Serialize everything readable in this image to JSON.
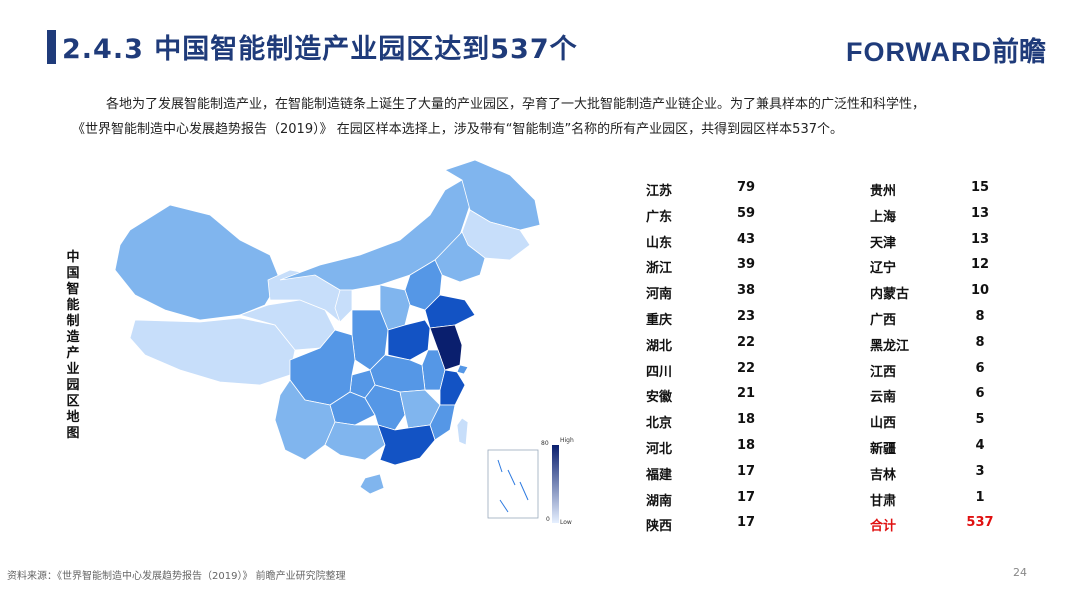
{
  "header": {
    "title": "2.4.3 中国智能制造产业园区达到537个",
    "brand_latin": "FORWARD",
    "brand_cn": "前瞻"
  },
  "intro": {
    "line1": "各地为了发展智能制造产业，在智能制造链条上诞生了大量的产业园区，孕育了一大批智能制造产业链企业。为了兼具样本的广泛性和科学性，",
    "line2": "《世界智能制造中心发展趋势报告（2019）》 在园区样本选择上，涉及带有“智能制造”名称的所有产业园区，共得到园区样本537个。"
  },
  "map": {
    "vertical_label": "中国智能制造产业园区地图",
    "legend": {
      "high": "High",
      "low": "Low",
      "max": "80",
      "min": "0"
    },
    "colors": {
      "lowest": "#c7defa",
      "low": "#a8cdf5",
      "mid_low": "#80b5ee",
      "mid": "#5597e6",
      "mid_high": "#2f7be0",
      "high": "#1353c4",
      "highest": "#0a1f6e",
      "sea_mark": "#2f7be0"
    }
  },
  "table": {
    "left": [
      {
        "province": "江苏",
        "count": "79"
      },
      {
        "province": "广东",
        "count": "59"
      },
      {
        "province": "山东",
        "count": "43"
      },
      {
        "province": "浙江",
        "count": "39"
      },
      {
        "province": "河南",
        "count": "38"
      },
      {
        "province": "重庆",
        "count": "23"
      },
      {
        "province": "湖北",
        "count": "22"
      },
      {
        "province": "四川",
        "count": "22"
      },
      {
        "province": "安徽",
        "count": "21"
      },
      {
        "province": "北京",
        "count": "18"
      },
      {
        "province": "河北",
        "count": "18"
      },
      {
        "province": "福建",
        "count": "17"
      },
      {
        "province": "湖南",
        "count": "17"
      },
      {
        "province": "陕西",
        "count": "17"
      }
    ],
    "right": [
      {
        "province": "贵州",
        "count": "15"
      },
      {
        "province": "上海",
        "count": "13"
      },
      {
        "province": "天津",
        "count": "13"
      },
      {
        "province": "辽宁",
        "count": "12"
      },
      {
        "province": "内蒙古",
        "count": "10"
      },
      {
        "province": "广西",
        "count": "8"
      },
      {
        "province": "黑龙江",
        "count": "8"
      },
      {
        "province": "江西",
        "count": "6"
      },
      {
        "province": "云南",
        "count": "6"
      },
      {
        "province": "山西",
        "count": "5"
      },
      {
        "province": "新疆",
        "count": "4"
      },
      {
        "province": "吉林",
        "count": "3"
      },
      {
        "province": "甘肃",
        "count": "1"
      }
    ],
    "total": {
      "label": "合计",
      "value": "537"
    }
  },
  "footer": {
    "source": "资料来源：《世界智能制造中心发展趋势报告（2019）》 前瞻产业研究院整理",
    "page": "24"
  }
}
